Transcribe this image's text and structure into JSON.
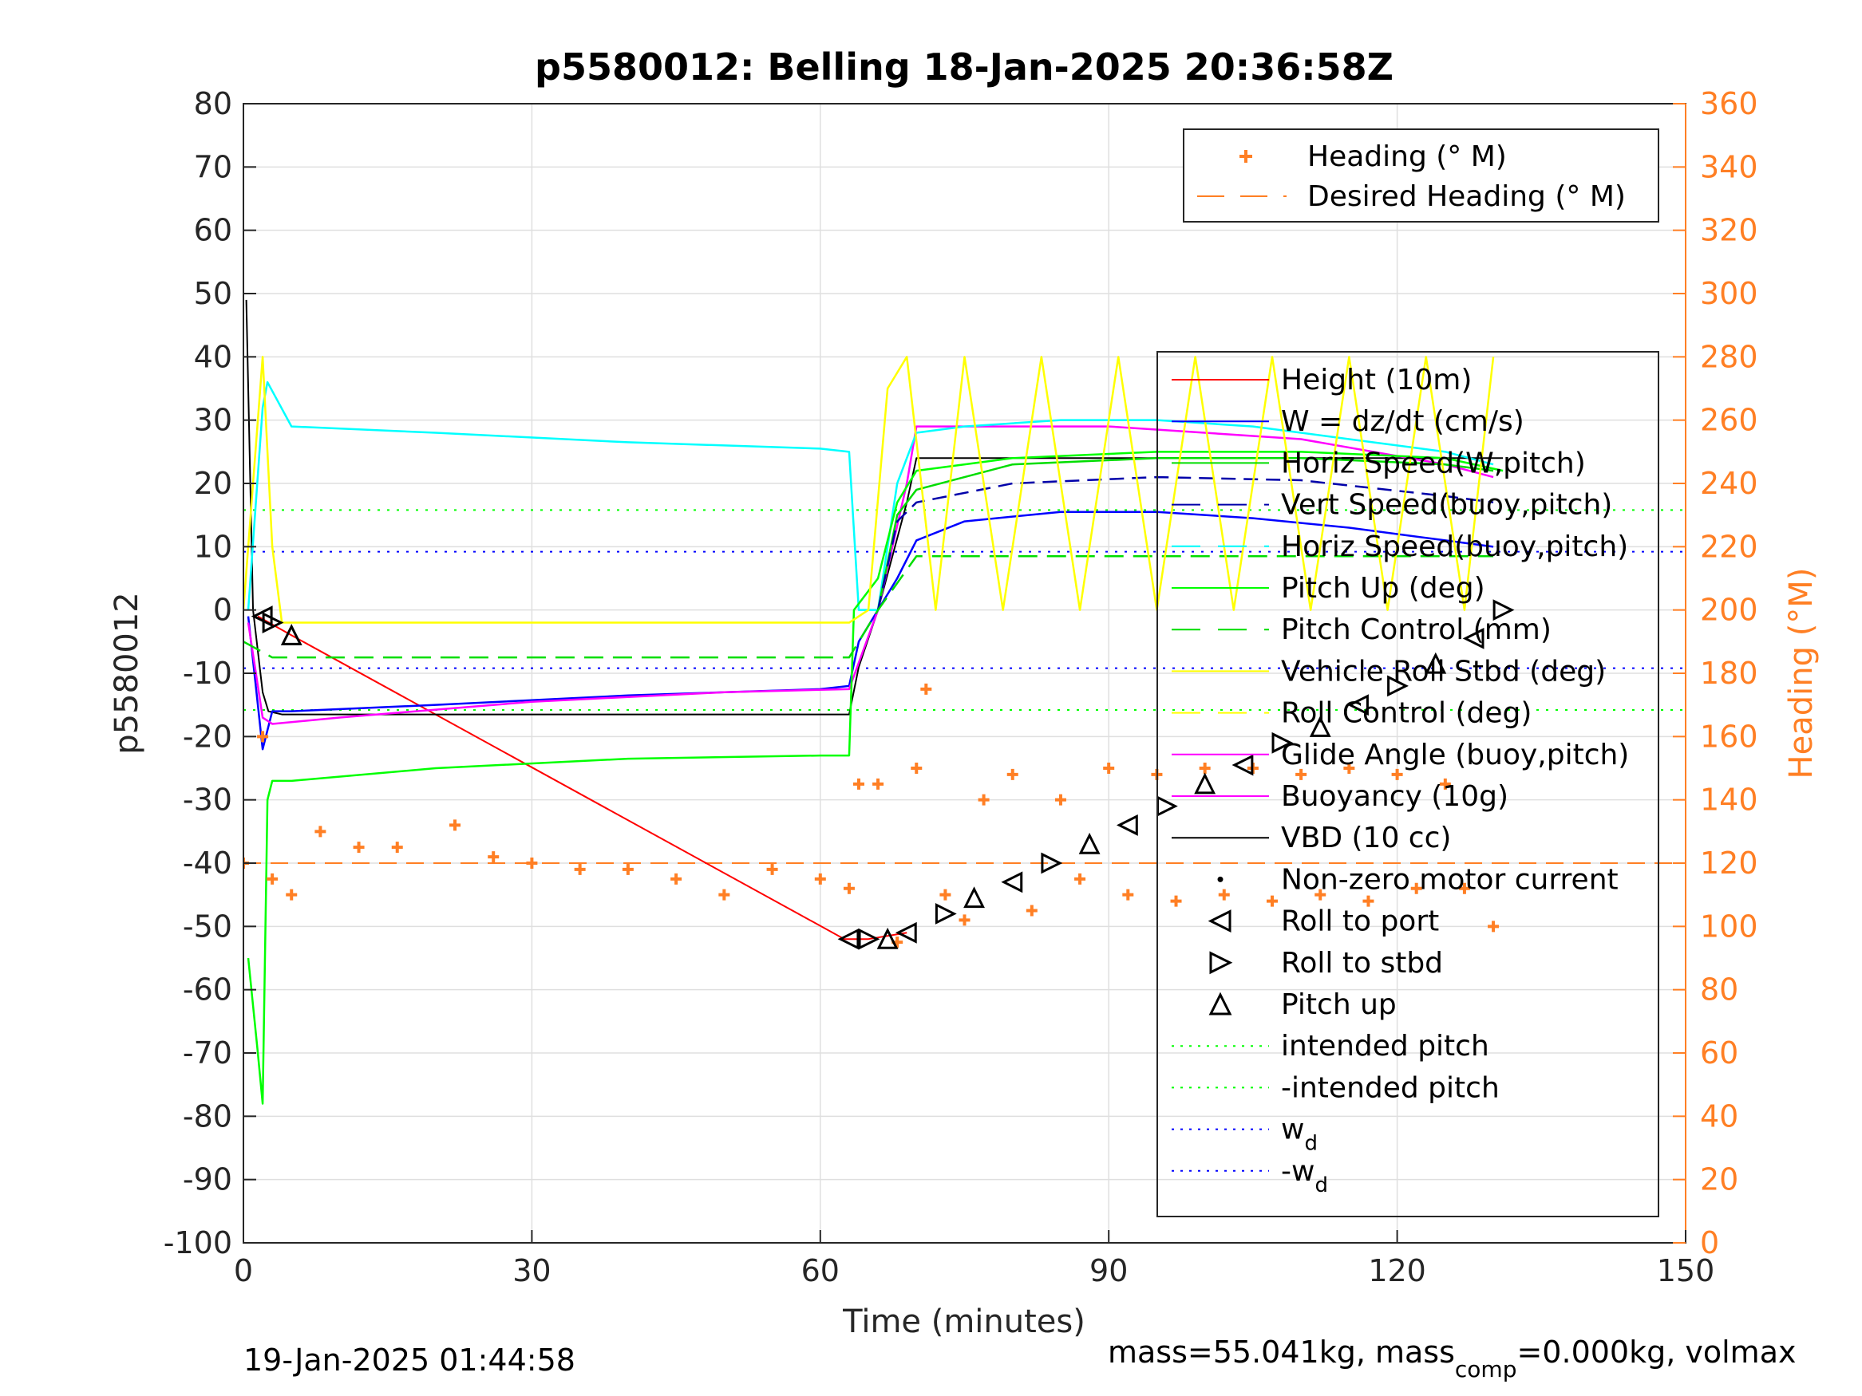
{
  "chart_data": {
    "type": "line",
    "title": "p5580012: Belling 18-Jan-2025 20:36:58Z",
    "xlabel": "Time (minutes)",
    "ylabel_left": "p5580012",
    "ylabel_right": "Heading (°M)",
    "xlim": [
      0,
      150
    ],
    "ylim_left": [
      -100,
      80
    ],
    "ylim_right": [
      0,
      360
    ],
    "xticks": [
      "0",
      "30",
      "60",
      "90",
      "120",
      "150"
    ],
    "yticks_left": [
      "80",
      "70",
      "60",
      "50",
      "40",
      "30",
      "20",
      "10",
      "0",
      "-10",
      "-20",
      "-30",
      "-40",
      "-50",
      "-60",
      "-70",
      "-80",
      "-90",
      "-100"
    ],
    "yticks_right": [
      "360",
      "340",
      "320",
      "300",
      "280",
      "260",
      "240",
      "220",
      "200",
      "180",
      "160",
      "140",
      "120",
      "100",
      "80",
      "60",
      "40",
      "20",
      "0"
    ],
    "grid": true,
    "footer_left": "19-Jan-2025 01:44:58",
    "footer_right": "mass=55.041kg, mass",
    "footer_right_sub": "comp",
    "footer_right_tail": "=0.000kg, volmax",
    "colors": {
      "heading": "#ff7f24",
      "height": "#ff0000",
      "w": "#0000ff",
      "horiz_speed": "#00ee00",
      "vert_speed": "#0000aa",
      "horiz_speed_buoy": "#00ffff",
      "pitch": "#00ff00",
      "roll": "#ffff00",
      "glide": "#ff00ff",
      "vbd": "#000000",
      "axis_right": "#ff7f24"
    },
    "legend_heading": [
      {
        "label": "Heading (° M)",
        "color": "#ff7f24",
        "style": "plus"
      },
      {
        "label": "Desired Heading (° M)",
        "color": "#ff7f24",
        "style": "dash"
      }
    ],
    "legend_main": [
      {
        "label": "Height (10m)",
        "color": "#ff0000",
        "style": "solid"
      },
      {
        "label": "W = dz/dt (cm/s)",
        "color": "#0000ff",
        "style": "solid"
      },
      {
        "label": "Horiz Speed(W,pitch)",
        "color": "#00dd00",
        "style": "solid"
      },
      {
        "label": "Vert Speed(buoy,pitch)",
        "color": "#0000aa",
        "style": "dash"
      },
      {
        "label": "Horiz Speed(buoy,pitch)",
        "color": "#00ffff",
        "style": "dash"
      },
      {
        "label": "Pitch Up (deg)",
        "color": "#00ff00",
        "style": "solid"
      },
      {
        "label": "Pitch Control (mm)",
        "color": "#00dd00",
        "style": "dash"
      },
      {
        "label": "Vehicle Roll Stbd (deg)",
        "color": "#ffff00",
        "style": "solid"
      },
      {
        "label": "Roll Control (deg)",
        "color": "#ffff00",
        "style": "dash"
      },
      {
        "label": "Glide Angle (buoy,pitch)",
        "color": "#ff00ff",
        "style": "solid"
      },
      {
        "label": "Buoyancy (10g)",
        "color": "#ff00ff",
        "style": "solid"
      },
      {
        "label": "VBD (10 cc)",
        "color": "#000000",
        "style": "solid"
      },
      {
        "label": "Non-zero motor current",
        "color": "#000000",
        "style": "dot"
      },
      {
        "label": "Roll to port",
        "color": "#000000",
        "style": "tri-left"
      },
      {
        "label": "Roll to stbd",
        "color": "#000000",
        "style": "tri-right"
      },
      {
        "label": "Pitch up",
        "color": "#000000",
        "style": "tri-up"
      },
      {
        "label": "intended pitch",
        "color": "#00ff00",
        "style": "dotted"
      },
      {
        "label": "-intended pitch",
        "color": "#00ff00",
        "style": "dotted"
      },
      {
        "label": "w",
        "sub": "d",
        "color": "#0000ff",
        "style": "dotted"
      },
      {
        "label": "-w",
        "sub": "d",
        "color": "#0000ff",
        "style": "dotted"
      }
    ],
    "reference_lines": {
      "intended_pitch": 15.8,
      "neg_intended_pitch": -15.8,
      "w_d": 9.2,
      "neg_w_d": -9.2,
      "desired_heading": 120
    },
    "series": [
      {
        "name": "Height (10m)",
        "x": [
          1.5,
          5,
          62.5,
          65,
          69
        ],
        "y": [
          -1,
          -4,
          -52,
          -52,
          -51
        ]
      },
      {
        "name": "VBD (10 cc)",
        "x": [
          0.3,
          1,
          2,
          2.6,
          4,
          63,
          64,
          66,
          69,
          70,
          95,
          130,
          131
        ],
        "y": [
          49,
          0,
          -13,
          -16,
          -16.5,
          -16.5,
          -9,
          0,
          17,
          24,
          24,
          24,
          24
        ]
      },
      {
        "name": "W = dz/dt (cm/s)",
        "x": [
          0.5,
          2,
          3,
          5,
          20,
          40,
          60,
          63,
          64,
          66,
          68,
          70,
          75,
          85,
          95,
          105,
          115,
          125,
          130
        ],
        "y": [
          -1,
          -22,
          -16,
          -16,
          -15,
          -13.5,
          -12.5,
          -12,
          -5,
          0,
          5,
          11,
          14,
          15.5,
          15.5,
          14.5,
          13,
          11,
          10
        ]
      },
      {
        "name": "Glide Angle (buoy,pitch)",
        "x": [
          0.5,
          2,
          3,
          10,
          30,
          50,
          63,
          66,
          69,
          70,
          90,
          110,
          125,
          130
        ],
        "y": [
          -2,
          -17,
          -18,
          -17,
          -14.5,
          -13,
          -12.5,
          0,
          20,
          29,
          29,
          27,
          23,
          21
        ]
      },
      {
        "name": "Horiz Speed(buoy,pitch)",
        "x": [
          0.5,
          2,
          2.5,
          5,
          20,
          40,
          60,
          63,
          64,
          66,
          68,
          70,
          75,
          85,
          95,
          105,
          115,
          125,
          130
        ],
        "y": [
          0,
          32,
          36,
          29,
          28,
          26.5,
          25.5,
          25,
          0,
          0,
          20,
          28,
          29,
          30,
          30,
          29,
          27,
          25,
          23
        ]
      },
      {
        "name": "Horiz Speed(W,pitch)",
        "x": [
          66,
          68,
          70,
          80,
          95,
          110,
          125,
          130
        ],
        "y": [
          0,
          15,
          19,
          23,
          24,
          24,
          23,
          22
        ]
      },
      {
        "name": "Vert Speed(buoy,pitch)",
        "x": [
          66,
          68,
          70,
          80,
          95,
          110,
          125,
          130
        ],
        "y": [
          0,
          14,
          17,
          20,
          21,
          20.5,
          18,
          17
        ]
      },
      {
        "name": "Pitch Up (deg)",
        "x": [
          0.5,
          1.5,
          2,
          2.5,
          3,
          5,
          20,
          40,
          60,
          63,
          63.5,
          66,
          68,
          70,
          80,
          95,
          110,
          125,
          131
        ],
        "y": [
          -55,
          -70,
          -78,
          -30,
          -27,
          -27,
          -25,
          -23.5,
          -23,
          -23,
          0,
          5,
          17,
          22,
          24,
          25,
          25,
          24,
          22
        ]
      },
      {
        "name": "Pitch Control (mm)",
        "x": [
          0,
          3,
          5,
          63,
          66,
          70,
          130
        ],
        "y": [
          -5,
          -7.5,
          -7.5,
          -7.5,
          0,
          8.5,
          8.5
        ]
      },
      {
        "name": "Heading (° M)",
        "x": [
          0,
          2,
          3,
          5,
          8,
          12,
          16,
          22,
          26,
          30,
          35,
          40,
          45,
          50,
          55,
          60,
          63,
          64,
          66,
          68,
          70,
          71,
          73,
          75,
          77,
          80,
          82,
          85,
          87,
          90,
          92,
          95,
          97,
          100,
          102,
          105,
          107,
          110,
          112,
          115,
          117,
          120,
          122,
          125,
          127,
          130
        ],
        "y": [
          120,
          160,
          115,
          110,
          130,
          125,
          125,
          132,
          122,
          120,
          118,
          118,
          115,
          110,
          118,
          115,
          112,
          145,
          145,
          95,
          150,
          175,
          110,
          102,
          140,
          148,
          105,
          140,
          115,
          150,
          110,
          148,
          108,
          150,
          110,
          150,
          108,
          148,
          110,
          150,
          108,
          148,
          112,
          145,
          112,
          100
        ]
      },
      {
        "name": "Roll Control (deg)",
        "x": [
          0,
          2,
          3,
          4,
          63,
          65,
          67,
          69,
          72,
          75,
          79,
          83,
          87,
          91,
          95,
          99,
          103,
          107,
          111,
          115,
          119,
          123,
          127,
          130
        ],
        "y": [
          0,
          40,
          10,
          -2,
          -2,
          0,
          35,
          40,
          0,
          40,
          0,
          40,
          0,
          40,
          0,
          40,
          0,
          40,
          0,
          40,
          0,
          40,
          0,
          40
        ]
      },
      {
        "name": "Roll events",
        "x": [
          2,
          3,
          5,
          63,
          65,
          67,
          69,
          73,
          76,
          80,
          84,
          88,
          92,
          96,
          100,
          104,
          108,
          112,
          116,
          120,
          124,
          128,
          131
        ],
        "y": [
          -1,
          -2,
          -4,
          -52,
          -52,
          -52,
          -51,
          -48,
          -45.5,
          -43,
          -40,
          -37,
          -34,
          -31,
          -27.5,
          -24.5,
          -21,
          -18.5,
          -15,
          -12,
          -8.5,
          -4.5,
          0
        ]
      }
    ]
  }
}
